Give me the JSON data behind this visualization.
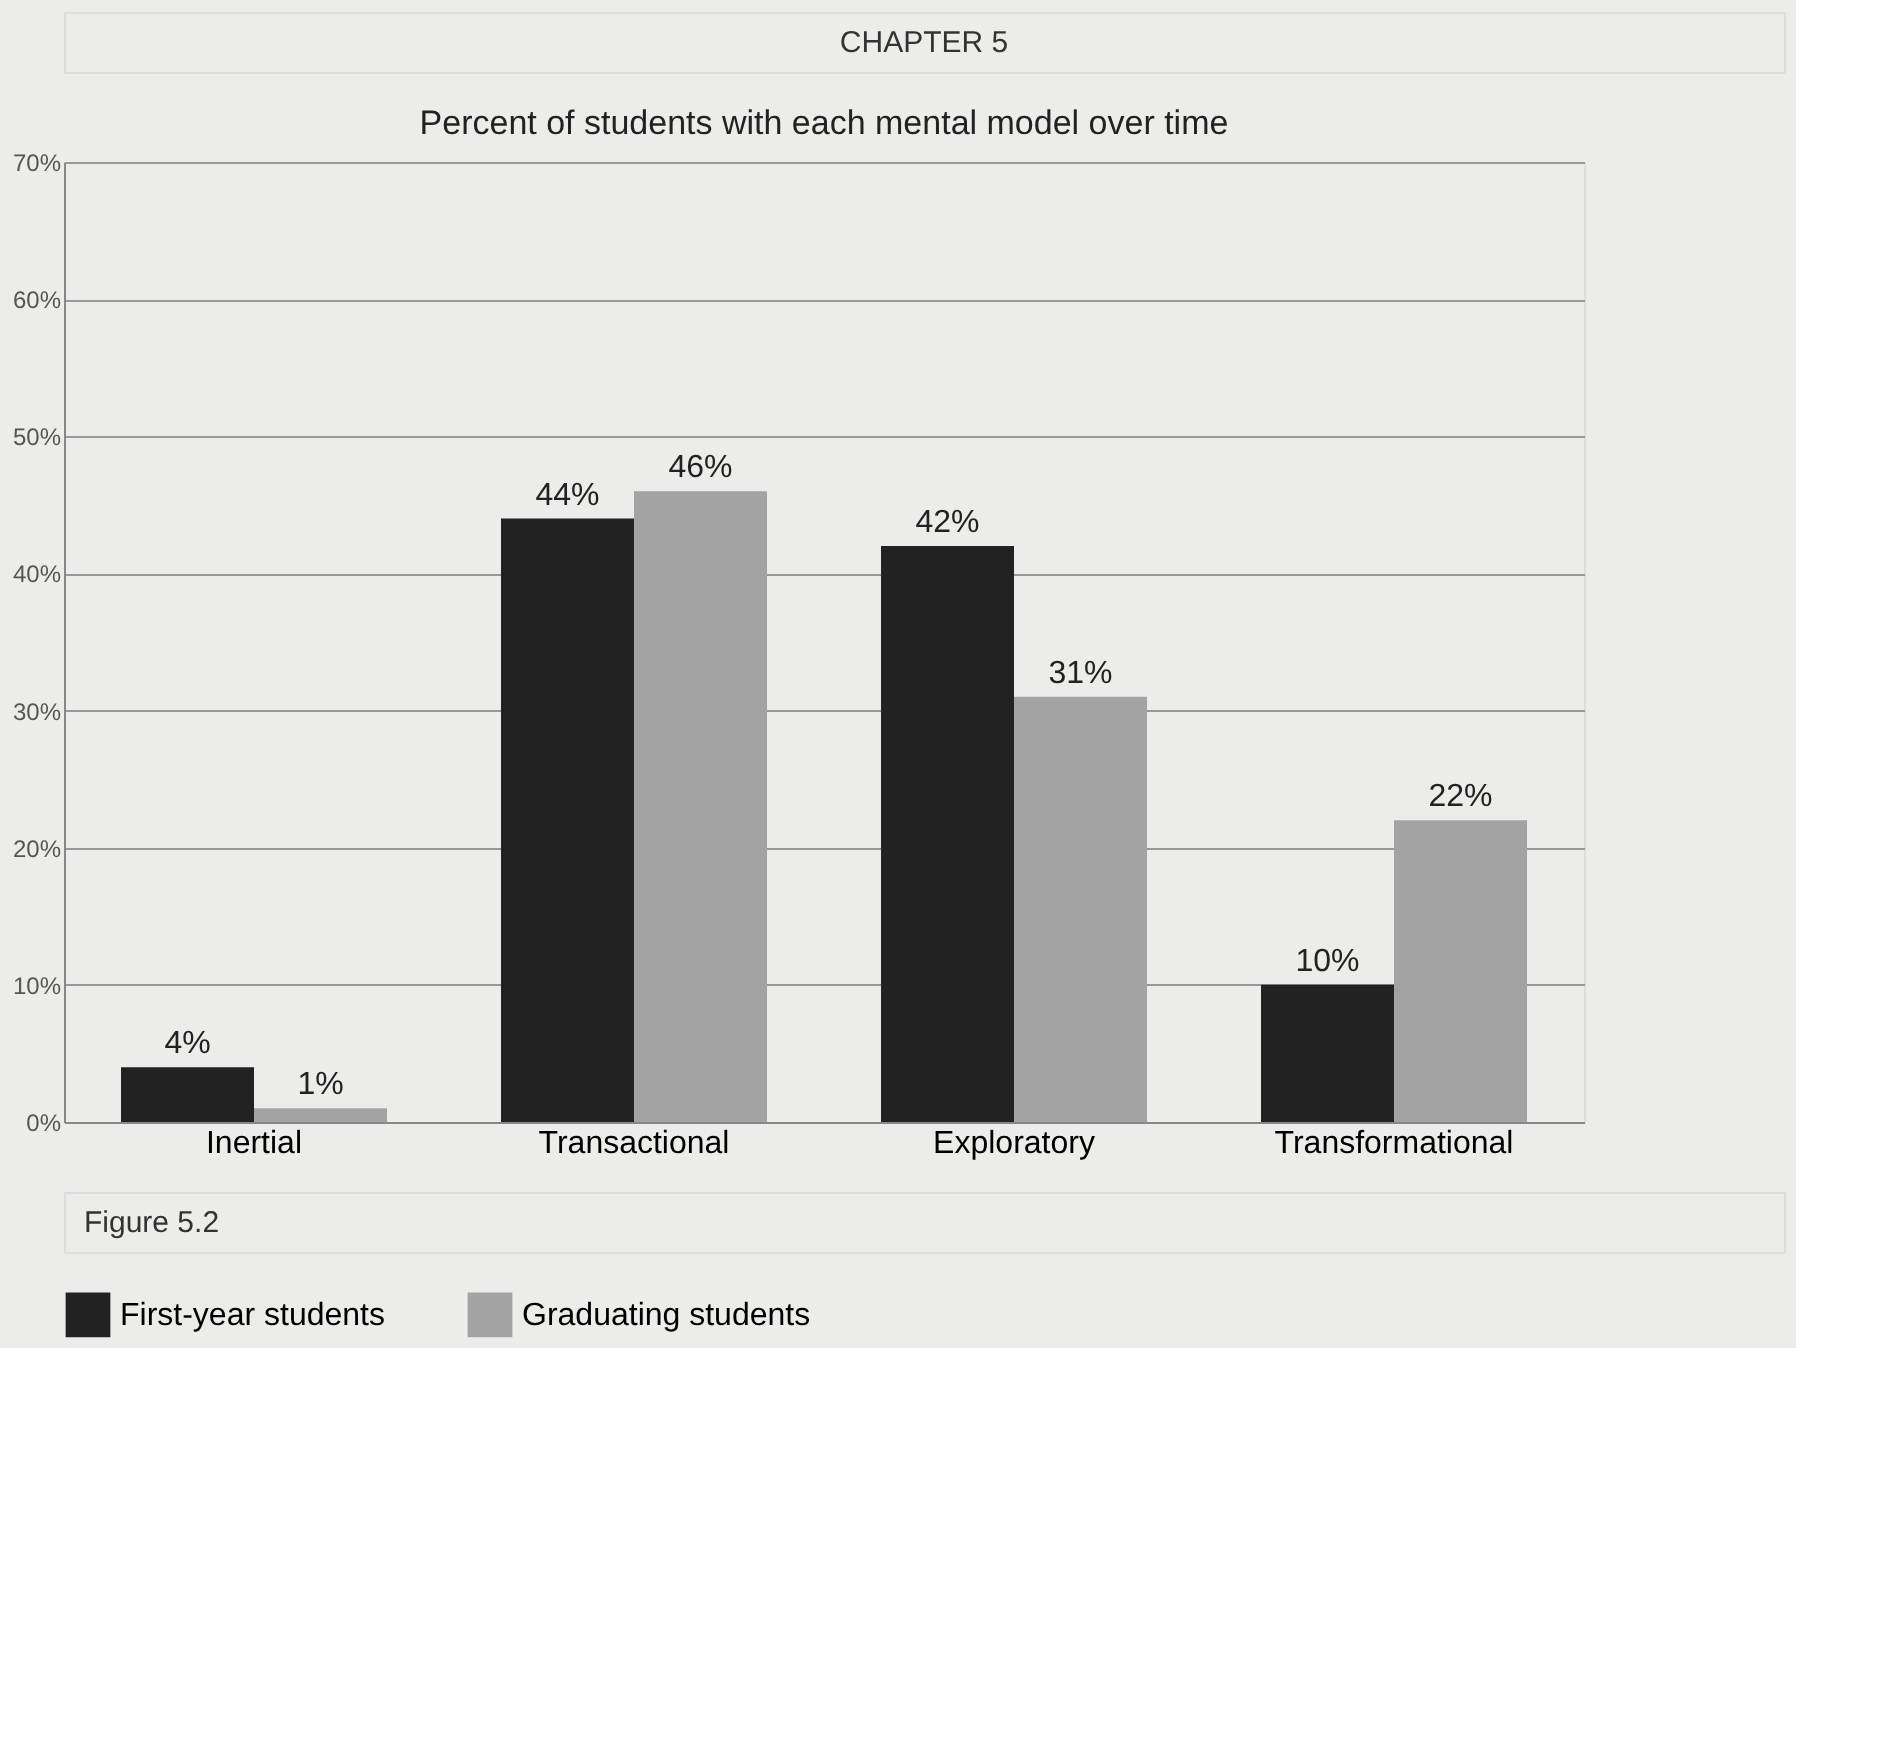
{
  "chart_data": {
    "type": "bar",
    "title": "Percent of students with each mental model over time",
    "categories": [
      "Inertial",
      "Transactional",
      "Exploratory",
      "Transformational"
    ],
    "series": [
      {
        "name": "First-year students",
        "color": "#222222",
        "values": [
          4,
          44,
          42,
          10
        ],
        "value_labels": [
          "4%",
          "44%",
          "42%",
          "10%"
        ]
      },
      {
        "name": "Graduating students",
        "color": "#a3a3a3",
        "values": [
          1,
          46,
          31,
          22
        ],
        "value_labels": [
          "1%",
          "46%",
          "31%",
          "22%"
        ]
      }
    ],
    "ylim": [
      0,
      70
    ],
    "yticks": [
      {
        "value": 0,
        "label": "0%"
      },
      {
        "value": 10,
        "label": "10%"
      },
      {
        "value": 20,
        "label": "20%"
      },
      {
        "value": 30,
        "label": "30%"
      },
      {
        "value": 40,
        "label": "40%"
      },
      {
        "value": 50,
        "label": "50%"
      },
      {
        "value": 60,
        "label": "60%"
      },
      {
        "value": 70,
        "label": "70%"
      }
    ],
    "grid": "y",
    "legend": "bottom",
    "annotations": [
      "CHAPTER 5",
      "Figure 5.2"
    ]
  }
}
